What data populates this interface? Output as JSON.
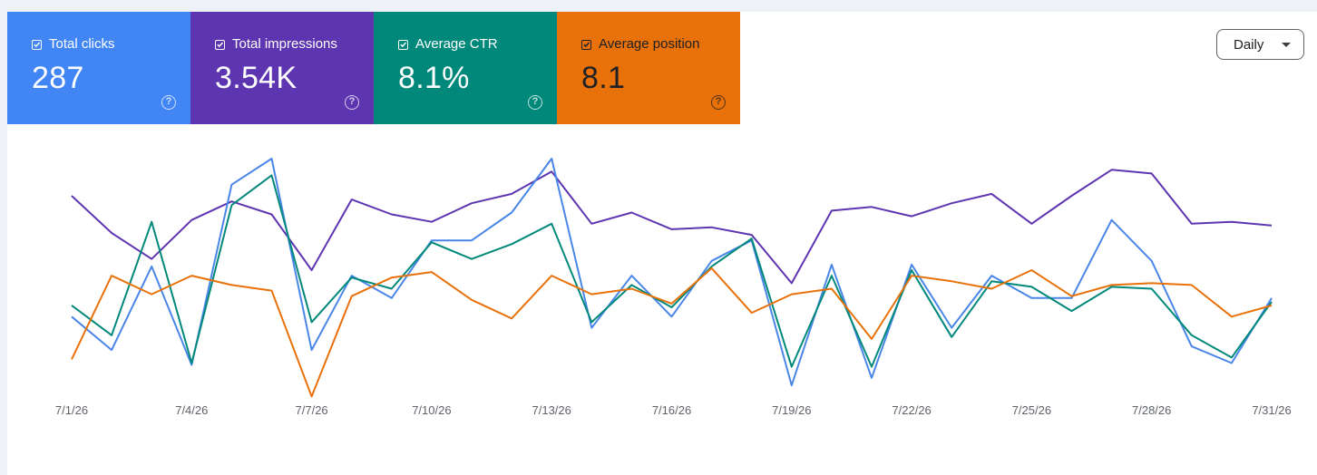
{
  "metrics": [
    {
      "label": "Total clicks",
      "value": "287",
      "color": "#4285f4",
      "text": "light"
    },
    {
      "label": "Total impressions",
      "value": "3.54K",
      "color": "#5e35b1",
      "text": "light"
    },
    {
      "label": "Average CTR",
      "value": "8.1%",
      "color": "#00897b",
      "text": "light"
    },
    {
      "label": "Average position",
      "value": "8.1",
      "color": "#e8710a",
      "text": "dark"
    }
  ],
  "help_glyph": "?",
  "granularity": {
    "selected": "Daily"
  },
  "chart_data": {
    "type": "line",
    "x": [
      "7/1/26",
      "7/2/26",
      "7/3/26",
      "7/4/26",
      "7/5/26",
      "7/6/26",
      "7/7/26",
      "7/8/26",
      "7/9/26",
      "7/10/26",
      "7/11/26",
      "7/12/26",
      "7/13/26",
      "7/14/26",
      "7/15/26",
      "7/16/26",
      "7/17/26",
      "7/18/26",
      "7/19/26",
      "7/20/26",
      "7/21/26",
      "7/22/26",
      "7/23/26",
      "7/24/26",
      "7/25/26",
      "7/26/26",
      "7/27/26",
      "7/28/26",
      "7/29/26",
      "7/30/26",
      "7/31/26"
    ],
    "xticks": [
      "7/1/26",
      "7/4/26",
      "7/7/26",
      "7/10/26",
      "7/13/26",
      "7/16/26",
      "7/19/26",
      "7/22/26",
      "7/25/26",
      "7/28/26",
      "7/31/26"
    ],
    "series": [
      {
        "name": "Total impressions",
        "color": "#5e35b1",
        "values": [
          0.8,
          0.6,
          0.46,
          0.67,
          0.77,
          0.7,
          0.4,
          0.78,
          0.7,
          0.66,
          0.76,
          0.81,
          0.93,
          0.65,
          0.71,
          0.62,
          0.63,
          0.59,
          0.33,
          0.72,
          0.74,
          0.69,
          0.76,
          0.81,
          0.65,
          0.8,
          0.94,
          0.92,
          0.65,
          0.66,
          0.64
        ]
      },
      {
        "name": "Total clicks",
        "color": "#4a86e8",
        "values": [
          0.15,
          -0.03,
          0.42,
          -0.11,
          0.86,
          1.0,
          -0.03,
          0.37,
          0.25,
          0.56,
          0.56,
          0.71,
          1.0,
          0.09,
          0.37,
          0.15,
          0.45,
          0.56,
          -0.22,
          0.43,
          -0.18,
          0.43,
          0.09,
          0.37,
          0.25,
          0.25,
          0.67,
          0.45,
          -0.01,
          -0.1,
          0.25
        ]
      },
      {
        "name": "Average CTR",
        "color": "#00897b",
        "values": [
          0.21,
          0.05,
          0.66,
          -0.1,
          0.75,
          0.91,
          0.12,
          0.36,
          0.3,
          0.55,
          0.46,
          0.54,
          0.65,
          0.12,
          0.32,
          0.2,
          0.42,
          0.57,
          -0.12,
          0.37,
          -0.12,
          0.4,
          0.04,
          0.34,
          0.31,
          0.18,
          0.31,
          0.3,
          0.05,
          -0.07,
          0.23
        ]
      },
      {
        "name": "Average position",
        "color": "#e8710a",
        "values": [
          -0.08,
          0.37,
          0.27,
          0.37,
          0.32,
          0.29,
          -0.28,
          0.26,
          0.36,
          0.39,
          0.24,
          0.14,
          0.37,
          0.27,
          0.3,
          0.22,
          0.41,
          0.17,
          0.27,
          0.3,
          0.03,
          0.37,
          0.34,
          0.3,
          0.4,
          0.26,
          0.32,
          0.33,
          0.32,
          0.15,
          0.21
        ]
      }
    ]
  }
}
